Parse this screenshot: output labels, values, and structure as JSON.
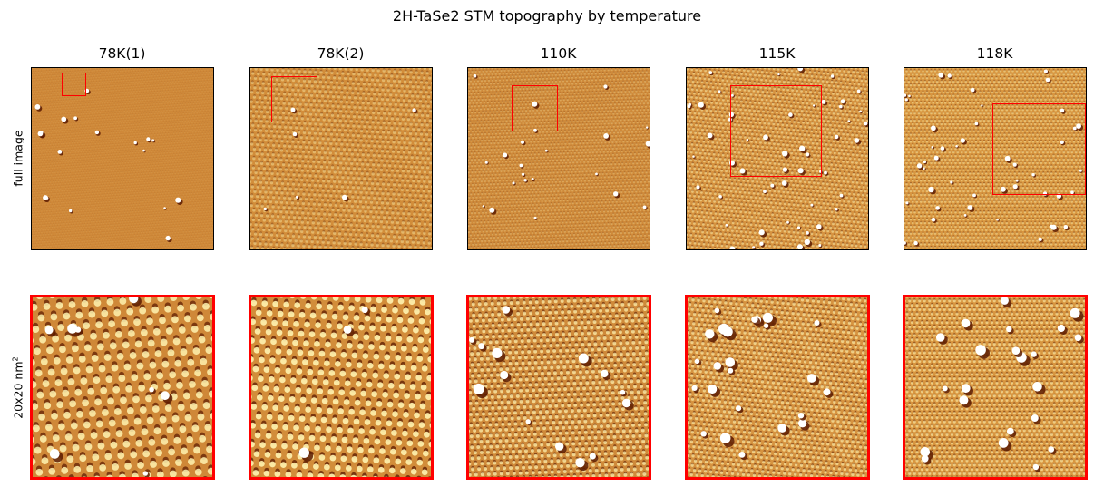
{
  "figure": {
    "title": "2H-TaSe2 STM topography by temperature",
    "row_labels": {
      "full": "full image",
      "zoom_base": "20x20 nm",
      "zoom_sup": "2"
    }
  },
  "columns": [
    {
      "title": "78K(1)",
      "tone": "#cf8838",
      "lattice": 3,
      "contrast": 0.1,
      "defects": 18,
      "zoom_lattice": 14,
      "zoom_contrast": 0.95,
      "zoom_defects": 8,
      "seed": 11
    },
    {
      "title": "78K(2)",
      "tone": "#d28d3a",
      "lattice": 6,
      "contrast": 0.45,
      "defects": 6,
      "zoom_lattice": 12,
      "zoom_contrast": 1.0,
      "zoom_defects": 3,
      "seed": 23
    },
    {
      "title": "110K",
      "tone": "#cf8a3a",
      "lattice": 4,
      "contrast": 0.3,
      "defects": 22,
      "zoom_lattice": 7,
      "zoom_contrast": 0.8,
      "zoom_defects": 14,
      "seed": 37
    },
    {
      "title": "115K",
      "tone": "#d69340",
      "lattice": 5,
      "contrast": 0.55,
      "defects": 55,
      "zoom_lattice": 6,
      "zoom_contrast": 0.7,
      "zoom_defects": 24,
      "seed": 41
    },
    {
      "title": "118K",
      "tone": "#d89640",
      "lattice": 4.5,
      "contrast": 0.5,
      "defects": 48,
      "zoom_lattice": 5.5,
      "zoom_contrast": 0.65,
      "zoom_defects": 22,
      "seed": 59
    }
  ],
  "colors": {
    "highlight": "#fff3b0",
    "dark": "#5a1a00",
    "roi": "#ff0000"
  }
}
